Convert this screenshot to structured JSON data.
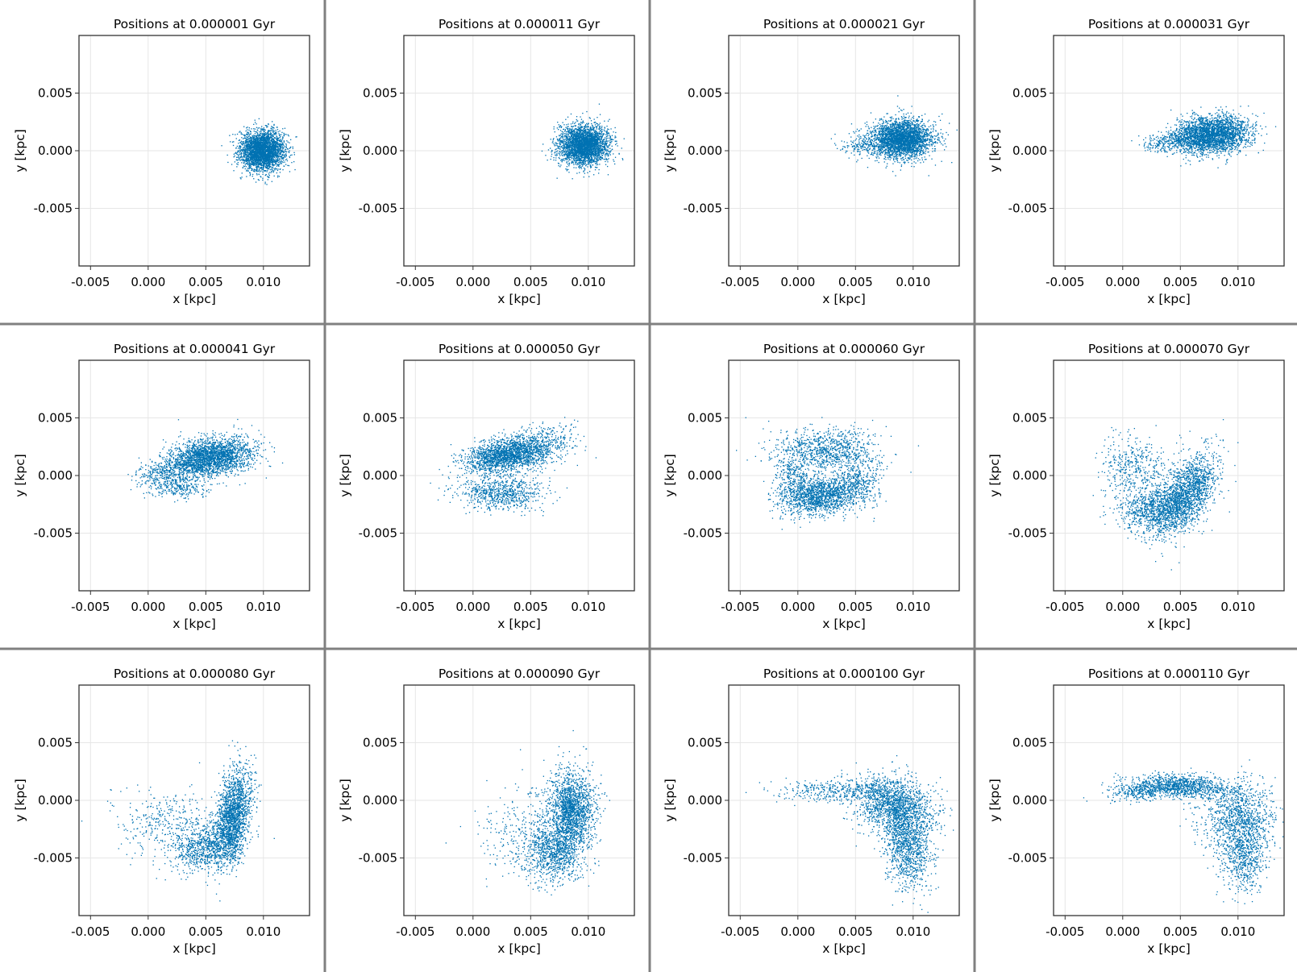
{
  "figure": {
    "rows": 3,
    "cols": 4,
    "point_color": "#0072b2",
    "divider_color": "#808080",
    "grid_color": "#e6e6e6"
  },
  "chart_data": [
    {
      "type": "scatter",
      "title": "Positions at 0.000001 Gyr",
      "xlabel": "x [kpc]",
      "ylabel": "y [kpc]",
      "xlim": [
        -0.006,
        0.014
      ],
      "ylim": [
        -0.01,
        0.01
      ],
      "xticks": [
        "-0.005",
        "0.000",
        "0.005",
        "0.010"
      ],
      "yticks": [
        "0.005",
        "0.000",
        "-0.005"
      ],
      "grid": true,
      "points": {
        "n": 3000,
        "clusters": [
          {
            "cx": 0.0099,
            "cy": 0.0,
            "sx": 0.00095,
            "sy": 0.00085,
            "w": 1.0,
            "rot": 0
          }
        ]
      }
    },
    {
      "type": "scatter",
      "title": "Positions at 0.000011 Gyr",
      "xlabel": "x [kpc]",
      "ylabel": "y [kpc]",
      "xlim": [
        -0.006,
        0.014
      ],
      "ylim": [
        -0.01,
        0.01
      ],
      "xticks": [
        "-0.005",
        "0.000",
        "0.005",
        "0.010"
      ],
      "yticks": [
        "0.005",
        "0.000",
        "-0.005"
      ],
      "grid": true,
      "points": {
        "n": 3000,
        "clusters": [
          {
            "cx": 0.0096,
            "cy": 0.0005,
            "sx": 0.00105,
            "sy": 0.00085,
            "w": 1.0,
            "rot": 0
          }
        ]
      }
    },
    {
      "type": "scatter",
      "title": "Positions at 0.000021 Gyr",
      "xlabel": "x [kpc]",
      "ylabel": "y [kpc]",
      "xlim": [
        -0.006,
        0.014
      ],
      "ylim": [
        -0.01,
        0.01
      ],
      "xticks": [
        "-0.005",
        "0.000",
        "0.005",
        "0.010"
      ],
      "yticks": [
        "0.005",
        "0.000",
        "-0.005"
      ],
      "grid": true,
      "points": {
        "n": 3000,
        "clusters": [
          {
            "cx": 0.009,
            "cy": 0.001,
            "sx": 0.00135,
            "sy": 0.00085,
            "w": 0.95,
            "rot": 0
          },
          {
            "cx": 0.0055,
            "cy": 0.0005,
            "sx": 0.001,
            "sy": 0.0004,
            "w": 0.05,
            "rot": 0
          }
        ]
      }
    },
    {
      "type": "scatter",
      "title": "Positions at 0.000031 Gyr",
      "xlabel": "x [kpc]",
      "ylabel": "y [kpc]",
      "xlim": [
        -0.006,
        0.014
      ],
      "ylim": [
        -0.01,
        0.01
      ],
      "xticks": [
        "-0.005",
        "0.000",
        "0.005",
        "0.010"
      ],
      "yticks": [
        "0.005",
        "0.000",
        "-0.005"
      ],
      "grid": true,
      "points": {
        "n": 3000,
        "clusters": [
          {
            "cx": 0.0077,
            "cy": 0.0014,
            "sx": 0.0016,
            "sy": 0.0008,
            "w": 0.9,
            "rot": 0.08
          },
          {
            "cx": 0.0045,
            "cy": 0.0008,
            "sx": 0.0015,
            "sy": 0.0004,
            "w": 0.1,
            "rot": 0.1
          }
        ]
      }
    },
    {
      "type": "scatter",
      "title": "Positions at 0.000041 Gyr",
      "xlabel": "x [kpc]",
      "ylabel": "y [kpc]",
      "xlim": [
        -0.006,
        0.014
      ],
      "ylim": [
        -0.01,
        0.01
      ],
      "xticks": [
        "-0.005",
        "0.000",
        "0.005",
        "0.010"
      ],
      "yticks": [
        "0.005",
        "0.000",
        "-0.005"
      ],
      "grid": true,
      "points": {
        "n": 3000,
        "clusters": [
          {
            "cx": 0.0055,
            "cy": 0.0016,
            "sx": 0.0018,
            "sy": 0.0008,
            "w": 0.78,
            "rot": 0.12
          },
          {
            "cx": 0.002,
            "cy": 0.0005,
            "sx": 0.0015,
            "sy": 0.0005,
            "w": 0.12,
            "rot": 0.2
          },
          {
            "cx": 0.0025,
            "cy": -0.001,
            "sx": 0.0013,
            "sy": 0.0005,
            "w": 0.1,
            "rot": -0.1
          }
        ]
      }
    },
    {
      "type": "scatter",
      "title": "Positions at 0.000050 Gyr",
      "xlabel": "x [kpc]",
      "ylabel": "y [kpc]",
      "xlim": [
        -0.006,
        0.014
      ],
      "ylim": [
        -0.01,
        0.01
      ],
      "xticks": [
        "-0.005",
        "0.000",
        "0.005",
        "0.010"
      ],
      "yticks": [
        "0.005",
        "0.000",
        "-0.005"
      ],
      "grid": true,
      "points": {
        "n": 3000,
        "clusters": [
          {
            "cx": 0.0027,
            "cy": 0.0017,
            "sx": 0.0017,
            "sy": 0.0007,
            "w": 0.55,
            "rot": 0.18
          },
          {
            "cx": 0.0055,
            "cy": 0.0025,
            "sx": 0.0017,
            "sy": 0.0008,
            "w": 0.2,
            "rot": 0.2
          },
          {
            "cx": 0.0025,
            "cy": -0.0015,
            "sx": 0.0018,
            "sy": 0.0007,
            "w": 0.25,
            "rot": -0.05
          }
        ]
      }
    },
    {
      "type": "scatter",
      "title": "Positions at 0.000060 Gyr",
      "xlabel": "x [kpc]",
      "ylabel": "y [kpc]",
      "xlim": [
        -0.006,
        0.014
      ],
      "ylim": [
        -0.01,
        0.01
      ],
      "xticks": [
        "-0.005",
        "0.000",
        "0.005",
        "0.010"
      ],
      "yticks": [
        "0.005",
        "0.000",
        "-0.005"
      ],
      "grid": true,
      "points": {
        "n": 3000,
        "clusters": [
          {
            "cx": 0.002,
            "cy": -0.0017,
            "sx": 0.0018,
            "sy": 0.0008,
            "w": 0.5,
            "rot": 0.15
          },
          {
            "cx": 0.0025,
            "cy": 0.0022,
            "sx": 0.0022,
            "sy": 0.0009,
            "w": 0.3,
            "rot": 0
          },
          {
            "cx": -0.0005,
            "cy": 0.0,
            "sx": 0.0008,
            "sy": 0.0012,
            "w": 0.1,
            "rot": 0
          },
          {
            "cx": 0.0055,
            "cy": -0.0005,
            "sx": 0.001,
            "sy": 0.0012,
            "w": 0.1,
            "rot": 0
          }
        ]
      }
    },
    {
      "type": "scatter",
      "title": "Positions at 0.000070 Gyr",
      "xlabel": "x [kpc]",
      "ylabel": "y [kpc]",
      "xlim": [
        -0.006,
        0.014
      ],
      "ylim": [
        -0.01,
        0.01
      ],
      "xticks": [
        "-0.005",
        "0.000",
        "0.005",
        "0.010"
      ],
      "yticks": [
        "0.005",
        "0.000",
        "-0.005"
      ],
      "grid": true,
      "points": {
        "n": 3000,
        "clusters": [
          {
            "cx": 0.0055,
            "cy": -0.0015,
            "sx": 0.001,
            "sy": 0.002,
            "w": 0.55,
            "rot": -0.6
          },
          {
            "cx": 0.003,
            "cy": -0.003,
            "sx": 0.0017,
            "sy": 0.001,
            "w": 0.3,
            "rot": 0
          },
          {
            "cx": 0.001,
            "cy": 0.0005,
            "sx": 0.0015,
            "sy": 0.0015,
            "w": 0.15,
            "rot": 0
          }
        ]
      }
    },
    {
      "type": "scatter",
      "title": "Positions at 0.000080 Gyr",
      "xlabel": "x [kpc]",
      "ylabel": "y [kpc]",
      "xlim": [
        -0.006,
        0.014
      ],
      "ylim": [
        -0.01,
        0.01
      ],
      "xticks": [
        "-0.005",
        "0.000",
        "0.005",
        "0.010"
      ],
      "yticks": [
        "0.005",
        "0.000",
        "-0.005"
      ],
      "grid": true,
      "points": {
        "n": 3000,
        "clusters": [
          {
            "cx": 0.0074,
            "cy": -0.0012,
            "sx": 0.0007,
            "sy": 0.002,
            "w": 0.6,
            "rot": -0.15
          },
          {
            "cx": 0.005,
            "cy": -0.004,
            "sx": 0.0015,
            "sy": 0.001,
            "w": 0.28,
            "rot": 0.3
          },
          {
            "cx": 0.0015,
            "cy": -0.002,
            "sx": 0.002,
            "sy": 0.0015,
            "w": 0.12,
            "rot": 0
          }
        ]
      }
    },
    {
      "type": "scatter",
      "title": "Positions at 0.000090 Gyr",
      "xlabel": "x [kpc]",
      "ylabel": "y [kpc]",
      "xlim": [
        -0.006,
        0.014
      ],
      "ylim": [
        -0.01,
        0.01
      ],
      "xticks": [
        "-0.005",
        "0.000",
        "0.005",
        "0.010"
      ],
      "yticks": [
        "0.005",
        "0.000",
        "-0.005"
      ],
      "grid": true,
      "points": {
        "n": 3000,
        "clusters": [
          {
            "cx": 0.0085,
            "cy": -0.001,
            "sx": 0.001,
            "sy": 0.0018,
            "w": 0.6,
            "rot": 0
          },
          {
            "cx": 0.007,
            "cy": -0.0045,
            "sx": 0.0012,
            "sy": 0.0013,
            "w": 0.3,
            "rot": 0
          },
          {
            "cx": 0.0045,
            "cy": -0.003,
            "sx": 0.002,
            "sy": 0.002,
            "w": 0.1,
            "rot": 0
          }
        ]
      }
    },
    {
      "type": "scatter",
      "title": "Positions at 0.000100 Gyr",
      "xlabel": "x [kpc]",
      "ylabel": "y [kpc]",
      "xlim": [
        -0.006,
        0.014
      ],
      "ylim": [
        -0.01,
        0.01
      ],
      "xticks": [
        "-0.005",
        "0.000",
        "0.005",
        "0.010"
      ],
      "yticks": [
        "0.005",
        "0.000",
        "-0.005"
      ],
      "grid": true,
      "points": {
        "n": 3000,
        "clusters": [
          {
            "cx": 0.0085,
            "cy": -0.0005,
            "sx": 0.0017,
            "sy": 0.0012,
            "w": 0.5,
            "rot": -0.3
          },
          {
            "cx": 0.0095,
            "cy": -0.004,
            "sx": 0.001,
            "sy": 0.0018,
            "w": 0.35,
            "rot": 0.1
          },
          {
            "cx": 0.004,
            "cy": 0.0008,
            "sx": 0.0025,
            "sy": 0.0005,
            "w": 0.15,
            "rot": 0
          }
        ]
      }
    },
    {
      "type": "scatter",
      "title": "Positions at 0.000110 Gyr",
      "xlabel": "x [kpc]",
      "ylabel": "y [kpc]",
      "xlim": [
        -0.006,
        0.014
      ],
      "ylim": [
        -0.01,
        0.01
      ],
      "xticks": [
        "-0.005",
        "0.000",
        "0.005",
        "0.010"
      ],
      "yticks": [
        "0.005",
        "0.000",
        "-0.005"
      ],
      "grid": true,
      "points": {
        "n": 3000,
        "clusters": [
          {
            "cx": 0.005,
            "cy": 0.0012,
            "sx": 0.0022,
            "sy": 0.0005,
            "w": 0.35,
            "rot": -0.05
          },
          {
            "cx": 0.01,
            "cy": -0.0015,
            "sx": 0.0015,
            "sy": 0.0015,
            "w": 0.35,
            "rot": -0.4
          },
          {
            "cx": 0.0105,
            "cy": -0.005,
            "sx": 0.001,
            "sy": 0.0015,
            "w": 0.2,
            "rot": 0
          },
          {
            "cx": 0.0015,
            "cy": 0.0008,
            "sx": 0.0015,
            "sy": 0.0004,
            "w": 0.1,
            "rot": 0.15
          }
        ]
      }
    }
  ]
}
